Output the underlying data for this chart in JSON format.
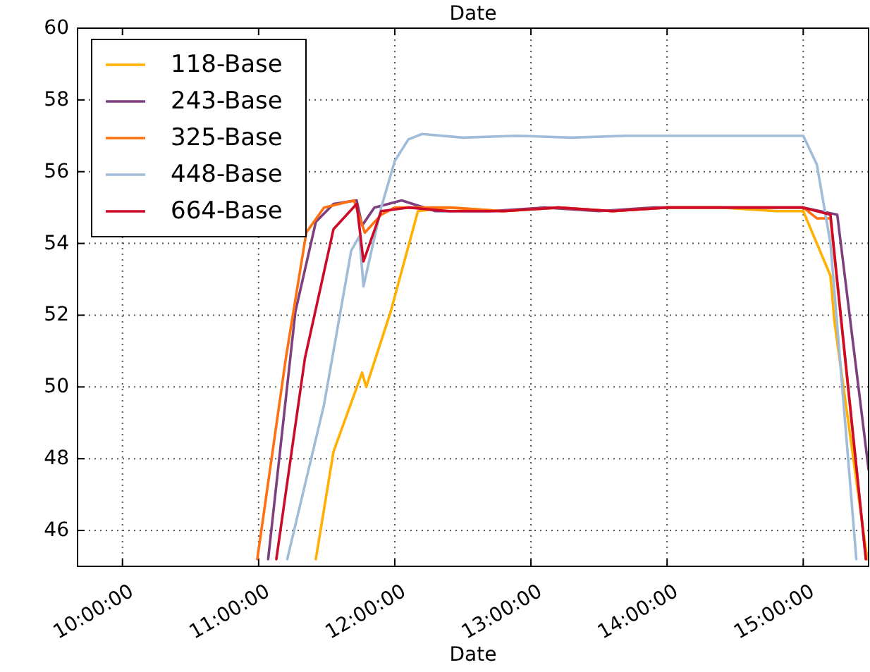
{
  "chart_data": {
    "type": "line",
    "title": "Date",
    "xlabel": "Date",
    "xlim": [
      9.67,
      15.48
    ],
    "ylim": [
      45,
      60
    ],
    "xticks": [
      {
        "value": 10,
        "label": "10:00:00"
      },
      {
        "value": 11,
        "label": "11:00:00"
      },
      {
        "value": 12,
        "label": "12:00:00"
      },
      {
        "value": 13,
        "label": "13:00:00"
      },
      {
        "value": 14,
        "label": "14:00:00"
      },
      {
        "value": 15,
        "label": "15:00:00"
      }
    ],
    "yticks": [
      46,
      48,
      50,
      52,
      54,
      56,
      58,
      60
    ],
    "grid": true,
    "legend": "top left",
    "line_style": "solid",
    "series": [
      {
        "name": "118-Base",
        "color": "#ffb000",
        "x": [
          11.42,
          11.55,
          11.76,
          11.79,
          11.97,
          12.17,
          12.4,
          12.8,
          13.2,
          13.6,
          14.0,
          14.4,
          14.8,
          15.0,
          15.2,
          15.23,
          15.47
        ],
        "values": [
          45.2,
          48.2,
          50.4,
          50.0,
          52.1,
          54.9,
          55.0,
          54.9,
          55.0,
          54.9,
          55.0,
          55.0,
          54.9,
          54.9,
          53.1,
          51.8,
          45.2
        ]
      },
      {
        "name": "243-Base",
        "color": "#7e3f7f",
        "x": [
          11.07,
          11.27,
          11.42,
          11.55,
          11.72,
          11.76,
          11.85,
          12.05,
          12.3,
          12.7,
          13.1,
          13.5,
          13.9,
          14.3,
          14.7,
          15.0,
          15.25,
          15.48
        ],
        "values": [
          45.2,
          52.1,
          54.6,
          55.1,
          55.2,
          54.5,
          55.0,
          55.2,
          54.9,
          54.9,
          55.0,
          54.9,
          55.0,
          55.0,
          55.0,
          55.0,
          54.8,
          47.7
        ]
      },
      {
        "name": "325-Base",
        "color": "#ff7010",
        "x": [
          10.99,
          11.2,
          11.35,
          11.48,
          11.7,
          11.78,
          11.9,
          12.0,
          12.4,
          12.8,
          13.2,
          13.6,
          14.0,
          14.4,
          14.8,
          15.0,
          15.1,
          15.2,
          15.46
        ],
        "values": [
          45.2,
          50.8,
          54.3,
          55.0,
          55.2,
          54.3,
          54.8,
          55.0,
          55.0,
          54.9,
          55.0,
          54.9,
          55.0,
          55.0,
          55.0,
          55.0,
          54.7,
          54.7,
          45.2
        ]
      },
      {
        "name": "448-Base",
        "color": "#a0bcd8",
        "x": [
          11.21,
          11.48,
          11.68,
          11.74,
          11.77,
          11.9,
          12.0,
          12.1,
          12.2,
          12.5,
          12.9,
          13.3,
          13.7,
          14.1,
          14.5,
          14.9,
          15.0,
          15.1,
          15.2,
          15.39
        ],
        "values": [
          45.2,
          49.5,
          53.8,
          54.2,
          52.8,
          55.0,
          56.3,
          56.9,
          57.05,
          56.95,
          57.0,
          56.95,
          57.0,
          57.0,
          57.0,
          57.0,
          57.0,
          56.2,
          54.0,
          45.2
        ]
      },
      {
        "name": "664-Base",
        "color": "#cc0a2a",
        "x": [
          11.13,
          11.34,
          11.55,
          11.72,
          11.77,
          11.9,
          12.1,
          12.4,
          12.8,
          13.2,
          13.6,
          14.0,
          14.4,
          14.8,
          15.0,
          15.2,
          15.46
        ],
        "values": [
          45.2,
          50.8,
          54.4,
          55.1,
          53.5,
          54.9,
          55.0,
          54.9,
          54.9,
          55.0,
          54.9,
          55.0,
          55.0,
          55.0,
          55.0,
          54.8,
          45.2
        ]
      }
    ]
  }
}
